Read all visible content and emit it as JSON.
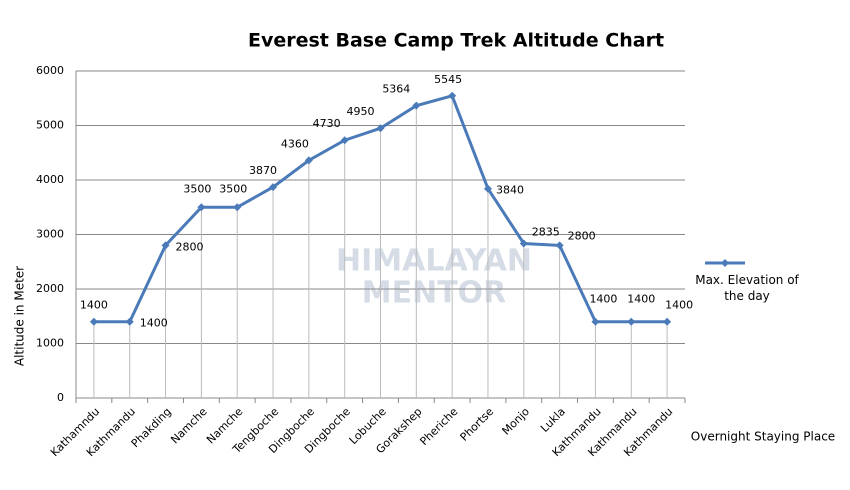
{
  "chart_data": {
    "type": "line",
    "title": "Everest Base Camp Trek Altitude Chart",
    "x_label": "Overnight Staying Place",
    "y_label": "Altitude in Meter",
    "watermark": [
      "HIMALAYAN",
      "MENTOR"
    ],
    "categories": [
      "Kathamndu",
      "Kathmandu",
      "Phakding",
      "Namche",
      "Namche",
      "Tengboche",
      "Dingboche",
      "Dingboche",
      "Lobuche",
      "Gorakshep",
      "Pheriche",
      "Phortse",
      "Monjo",
      "Lukla",
      "Kathmandu",
      "Kathmandu",
      "Kathmandu"
    ],
    "series": [
      {
        "name": "Max. Elevation of the day",
        "color": "#4a7ab8",
        "values": [
          1400,
          1400,
          2800,
          3500,
          3500,
          3870,
          4360,
          4730,
          4950,
          5364,
          5545,
          3840,
          2835,
          2800,
          1400,
          1400,
          1400
        ]
      }
    ],
    "ylim": [
      0,
      6000
    ],
    "yticks": [
      0,
      1000,
      2000,
      3000,
      4000,
      5000,
      6000
    ],
    "grid": true,
    "legend": "right"
  }
}
